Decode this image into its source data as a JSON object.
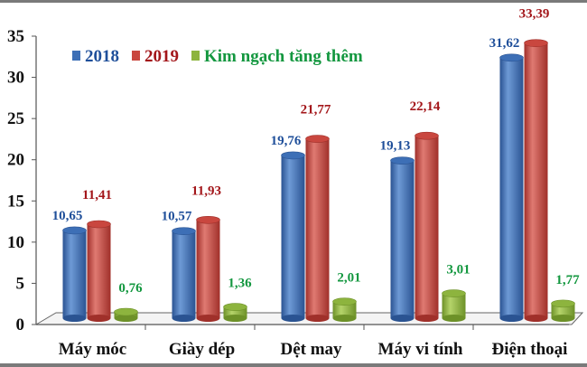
{
  "chart_data": {
    "type": "bar",
    "title": "",
    "xlabel": "",
    "ylabel": "",
    "ylim": [
      0,
      35
    ],
    "yticks": [
      "0",
      "5",
      "10",
      "15",
      "20",
      "25",
      "30",
      "35"
    ],
    "categories": [
      "Máy móc",
      "Giày dép",
      "Dệt may",
      "Máy vi tính",
      "Điện thoại"
    ],
    "legend_position": "top-left",
    "series": [
      {
        "name": "2018",
        "color": "#3d6fb6",
        "label_color": "#1f4f9a",
        "values": [
          10.65,
          10.57,
          19.76,
          19.13,
          31.62
        ],
        "labels": [
          "10,65",
          "10,57",
          "19,76",
          "19,13",
          "31,62"
        ]
      },
      {
        "name": "2019",
        "color": "#c9473f",
        "label_color": "#a3161a",
        "values": [
          11.41,
          11.93,
          21.77,
          22.14,
          33.39
        ],
        "labels": [
          "11,41",
          "11,93",
          "21,77",
          "22,14",
          "33,39"
        ]
      },
      {
        "name": "Kim ngạch tăng thêm",
        "color": "#8db43e",
        "label_color": "#13973f",
        "values": [
          0.76,
          1.36,
          2.01,
          3.01,
          1.77
        ],
        "labels": [
          "0,76",
          "1,36",
          "2,01",
          "3,01",
          "1,77"
        ]
      }
    ]
  }
}
